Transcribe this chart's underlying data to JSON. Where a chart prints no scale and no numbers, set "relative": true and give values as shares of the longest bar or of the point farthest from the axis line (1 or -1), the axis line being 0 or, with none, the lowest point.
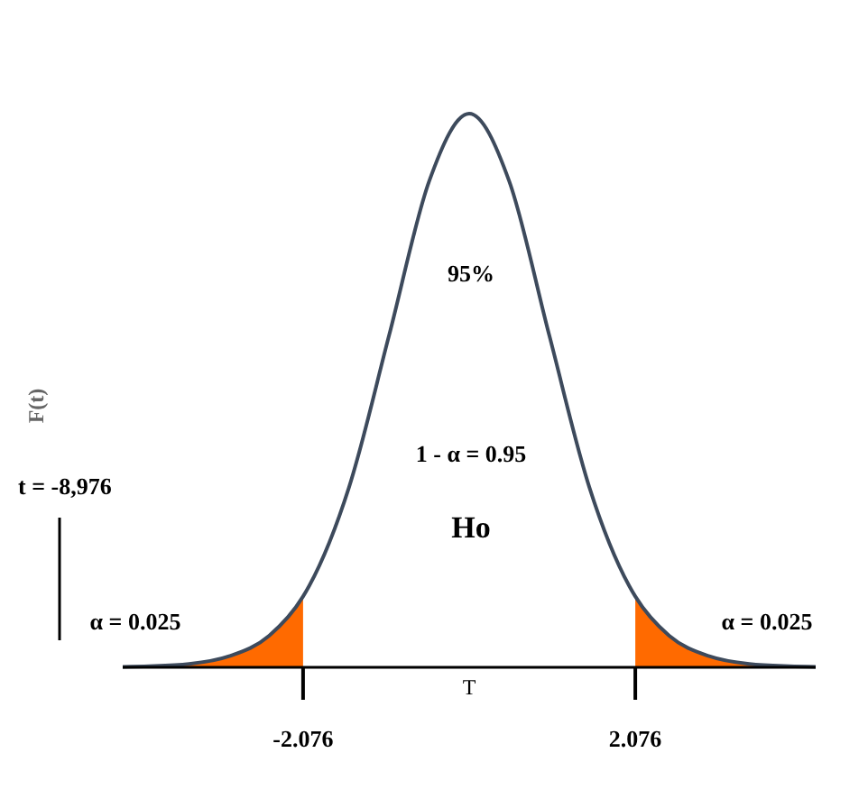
{
  "chart_data": {
    "type": "line",
    "relative": true,
    "xlabel": "T",
    "ylabel": "F(t)",
    "xlim": [
      -4.33,
      4.33
    ],
    "xticks": [
      -2.076,
      2.076
    ],
    "tick_labels": "x",
    "series": [
      {
        "color": "#3d4a5c",
        "x": [
          -4.33,
          -4,
          -3.5,
          -3,
          -2.5,
          -2.076,
          -2,
          -1.5,
          -1,
          -0.5,
          0,
          0.5,
          1,
          1.5,
          2,
          2.076,
          2.5,
          3,
          3.5,
          4,
          4.33
        ],
        "values": [
          0.001,
          0.002,
          0.006,
          0.02,
          0.057,
          0.128,
          0.147,
          0.326,
          0.6,
          0.878,
          1,
          0.878,
          0.6,
          0.326,
          0.147,
          0.128,
          0.057,
          0.02,
          0.006,
          0.002,
          0.001
        ]
      },
      {
        "type": "area",
        "color": "#ff6a00",
        "x": [
          -4.33,
          -4,
          -3.5,
          -3,
          -2.5,
          -2.076
        ],
        "values": [
          0.001,
          0.002,
          0.006,
          0.02,
          0.057,
          0.128
        ]
      },
      {
        "type": "area",
        "color": "#ff6a00",
        "x": [
          2.076,
          2.5,
          3,
          3.5,
          4,
          4.33
        ],
        "values": [
          0.128,
          0.057,
          0.02,
          0.006,
          0.002,
          0.001
        ]
      }
    ],
    "annotations": [
      "95%",
      "1 - α = 0.95",
      "Ho",
      "α = 0.025",
      "α = 0.025",
      "t = -8,976"
    ]
  }
}
